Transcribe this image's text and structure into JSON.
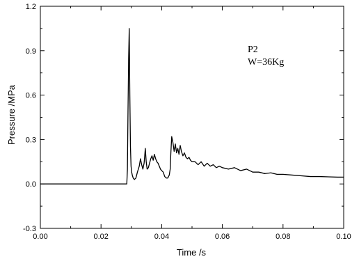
{
  "chart_data": {
    "type": "line",
    "xlabel": "Time /s",
    "ylabel": "Pressure /MPa",
    "xlim": [
      0.0,
      0.1
    ],
    "ylim": [
      -0.3,
      1.2
    ],
    "x_ticks": [
      "0.00",
      "0.02",
      "0.04",
      "0.06",
      "0.08",
      "0.10"
    ],
    "y_ticks": [
      "-0.3",
      "0.0",
      "0.3",
      "0.6",
      "0.9",
      "1.2"
    ],
    "x_tick_values": [
      0.0,
      0.02,
      0.04,
      0.06,
      0.08,
      0.1
    ],
    "y_tick_values": [
      -0.3,
      0.0,
      0.3,
      0.6,
      0.9,
      1.2
    ],
    "grid": false,
    "annotations": [
      "P2",
      "W=36Kg"
    ],
    "series": [
      {
        "color": "#000000",
        "x": [
          0.0,
          0.0285,
          0.0287,
          0.0289,
          0.0291,
          0.0293,
          0.0295,
          0.0297,
          0.0299,
          0.0301,
          0.0303,
          0.0306,
          0.031,
          0.0315,
          0.032,
          0.0326,
          0.033,
          0.0334,
          0.0338,
          0.0342,
          0.0346,
          0.0349,
          0.0352,
          0.0356,
          0.036,
          0.0364,
          0.0368,
          0.0372,
          0.0376,
          0.038,
          0.0384,
          0.0388,
          0.0392,
          0.0396,
          0.04,
          0.0405,
          0.041,
          0.0415,
          0.042,
          0.0425,
          0.0428,
          0.043,
          0.0433,
          0.0437,
          0.0441,
          0.0445,
          0.0449,
          0.0453,
          0.0457,
          0.0461,
          0.0465,
          0.047,
          0.0475,
          0.048,
          0.0485,
          0.049,
          0.0495,
          0.05,
          0.051,
          0.052,
          0.053,
          0.054,
          0.055,
          0.056,
          0.057,
          0.058,
          0.059,
          0.06,
          0.062,
          0.064,
          0.066,
          0.068,
          0.07,
          0.072,
          0.074,
          0.076,
          0.078,
          0.08,
          0.083,
          0.086,
          0.089,
          0.092,
          0.095,
          0.098,
          0.1
        ],
        "y": [
          0.0,
          0.0,
          0.1,
          0.5,
          0.85,
          1.05,
          0.6,
          0.25,
          0.12,
          0.08,
          0.06,
          0.04,
          0.03,
          0.04,
          0.08,
          0.12,
          0.17,
          0.13,
          0.1,
          0.14,
          0.24,
          0.15,
          0.1,
          0.11,
          0.14,
          0.17,
          0.19,
          0.16,
          0.2,
          0.17,
          0.15,
          0.14,
          0.12,
          0.1,
          0.09,
          0.08,
          0.05,
          0.04,
          0.04,
          0.06,
          0.1,
          0.2,
          0.32,
          0.28,
          0.22,
          0.27,
          0.21,
          0.24,
          0.2,
          0.26,
          0.22,
          0.19,
          0.21,
          0.18,
          0.17,
          0.18,
          0.16,
          0.15,
          0.15,
          0.13,
          0.15,
          0.12,
          0.14,
          0.12,
          0.13,
          0.11,
          0.12,
          0.11,
          0.1,
          0.11,
          0.09,
          0.1,
          0.08,
          0.08,
          0.07,
          0.075,
          0.065,
          0.065,
          0.06,
          0.055,
          0.05,
          0.05,
          0.048,
          0.046,
          0.046
        ]
      }
    ]
  }
}
